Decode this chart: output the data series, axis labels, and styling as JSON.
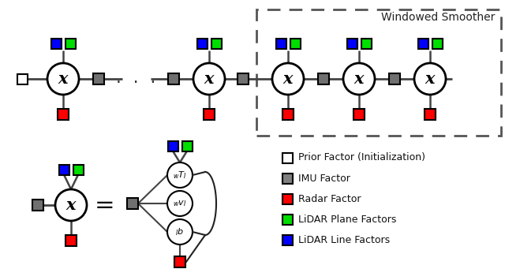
{
  "bg_color": "#ffffff",
  "windowed_smoother_label": "Windowed Smoother",
  "legend_items": [
    {
      "label": "Prior Factor (Initialization)",
      "color": "#ffffff",
      "edge": "#000000"
    },
    {
      "label": "IMU Factor",
      "color": "#808080",
      "edge": "#000000"
    },
    {
      "label": "Radar Factor",
      "color": "#ff0000",
      "edge": "#000000"
    },
    {
      "label": "LiDAR Plane Factors",
      "color": "#00dd00",
      "edge": "#000000"
    },
    {
      "label": "LiDAR Line Factors",
      "color": "#0000ff",
      "edge": "#000000"
    }
  ],
  "node_color": "#ffffff",
  "node_edge": "#000000",
  "imu_color": "#707070",
  "radar_color": "#ff0000",
  "lidar_plane_color": "#00dd00",
  "lidar_line_color": "#0000ff",
  "prior_color": "#ffffff",
  "line_color": "#444444"
}
